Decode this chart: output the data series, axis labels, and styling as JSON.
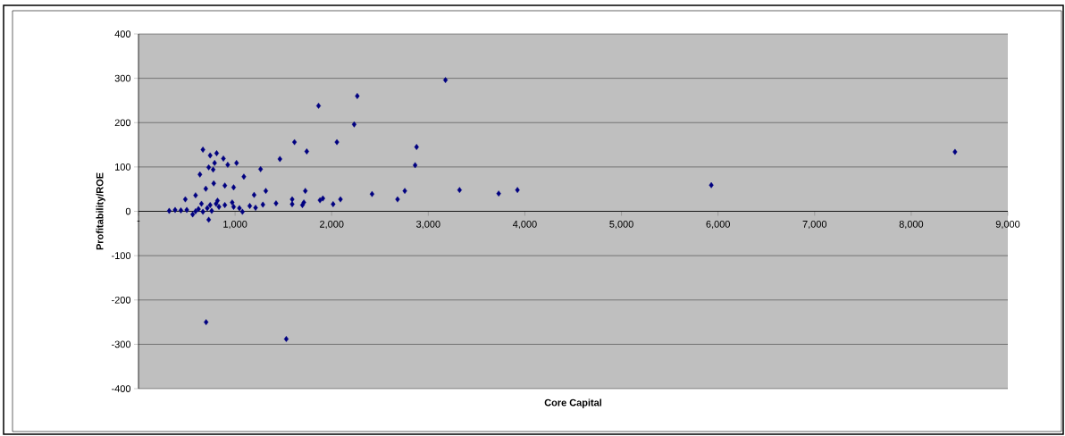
{
  "chart_data": {
    "type": "scatter",
    "xlabel": "Core Capital",
    "ylabel": "Profitability/ROE",
    "xlim": [
      0,
      9000
    ],
    "ylim": [
      -400,
      400
    ],
    "xticks": [
      {
        "value": 0,
        "label": "-"
      },
      {
        "value": 1000,
        "label": "1,000"
      },
      {
        "value": 2000,
        "label": "2,000"
      },
      {
        "value": 3000,
        "label": "3,000"
      },
      {
        "value": 4000,
        "label": "4,000"
      },
      {
        "value": 5000,
        "label": "5,000"
      },
      {
        "value": 6000,
        "label": "6,000"
      },
      {
        "value": 7000,
        "label": "7,000"
      },
      {
        "value": 8000,
        "label": "8,000"
      },
      {
        "value": 9000,
        "label": "9,000"
      }
    ],
    "yticks": [
      -400,
      -300,
      -200,
      -100,
      0,
      100,
      200,
      300,
      400
    ],
    "grid": "y",
    "marker": "diamond",
    "series": [
      {
        "color": "#000080",
        "x": [
          667,
          742,
          809,
          879,
          727,
          788,
          773,
          924,
          1015,
          636,
          1091,
          1264,
          1464,
          1615,
          1742,
          2054,
          2233,
          1864,
          2879,
          2864,
          779,
          894,
          985,
          697,
          591,
          485,
          1197,
          1318,
          1424,
          1288,
          1591,
          1591,
          1712,
          1727,
          1697,
          1909,
          1879,
          2015,
          2091,
          2418,
          2682,
          2757,
          727,
          318,
          379,
          439,
          500,
          561,
          591,
          621,
          667,
          712,
          758,
          818,
          833,
          894,
          970,
          985,
          1045,
          1076,
          1152,
          1212,
          742,
          652,
          803,
          3178,
          5930,
          8453,
          3324,
          3729,
          3923,
          700,
          1530,
          2265
        ],
        "values": [
          139,
          126,
          131,
          119,
          99,
          109,
          94,
          105,
          109,
          83,
          78,
          95,
          118,
          156,
          135,
          156,
          196,
          238,
          145,
          104,
          63,
          58,
          54,
          51,
          36,
          27,
          37,
          46,
          18,
          15,
          27,
          16,
          20,
          46,
          14,
          29,
          25,
          16,
          27,
          39,
          27,
          46,
          -19,
          1,
          3,
          2,
          3,
          -7,
          0,
          5,
          -1,
          7,
          1,
          24,
          10,
          14,
          20,
          10,
          7,
          -1,
          12,
          8,
          14,
          17,
          17,
          296,
          59,
          134,
          48,
          40,
          48,
          -250,
          -288,
          260
        ]
      }
    ]
  }
}
